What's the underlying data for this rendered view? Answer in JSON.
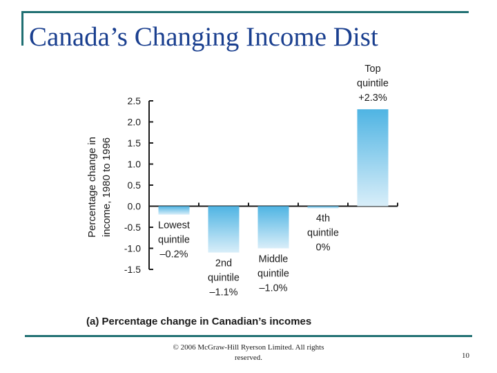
{
  "slide": {
    "title": "Canada’s Changing Income Dist",
    "footer": "© 2006 McGraw-Hill Ryerson Limited.  All rights reserved.",
    "page_number": "10",
    "accent_color": "#1f6f72",
    "title_color": "#1a3f8f"
  },
  "chart_data": {
    "type": "bar",
    "title": "(a) Percentage change in Canadian’s incomes",
    "ylabel": [
      "Percentage change in",
      "income, 1980 to 1996"
    ],
    "ylim": [
      -1.5,
      2.5
    ],
    "yticks": [
      "2.5",
      "2.0",
      "1.5",
      "1.0",
      "0.5",
      "0.0",
      "-0.5",
      "-1.0",
      "-1.5"
    ],
    "ytick_values": [
      2.5,
      2.0,
      1.5,
      1.0,
      0.5,
      0.0,
      -0.5,
      -1.0,
      -1.5
    ],
    "bar_gradient": [
      "#4fb4e3",
      "#d9eef9"
    ],
    "categories": [
      {
        "label_lines": [
          "Lowest",
          "quintile",
          "–0.2%"
        ],
        "value": -0.2
      },
      {
        "label_lines": [
          "2nd",
          "quintile",
          "–1.1%"
        ],
        "value": -1.1
      },
      {
        "label_lines": [
          "Middle",
          "quintile",
          "–1.0%"
        ],
        "value": -1.0
      },
      {
        "label_lines": [
          "4th",
          "quintile",
          "0%"
        ],
        "value": -0.05
      },
      {
        "label_lines": [
          "Top",
          "quintile",
          "+2.3%"
        ],
        "value": 2.3
      }
    ]
  }
}
